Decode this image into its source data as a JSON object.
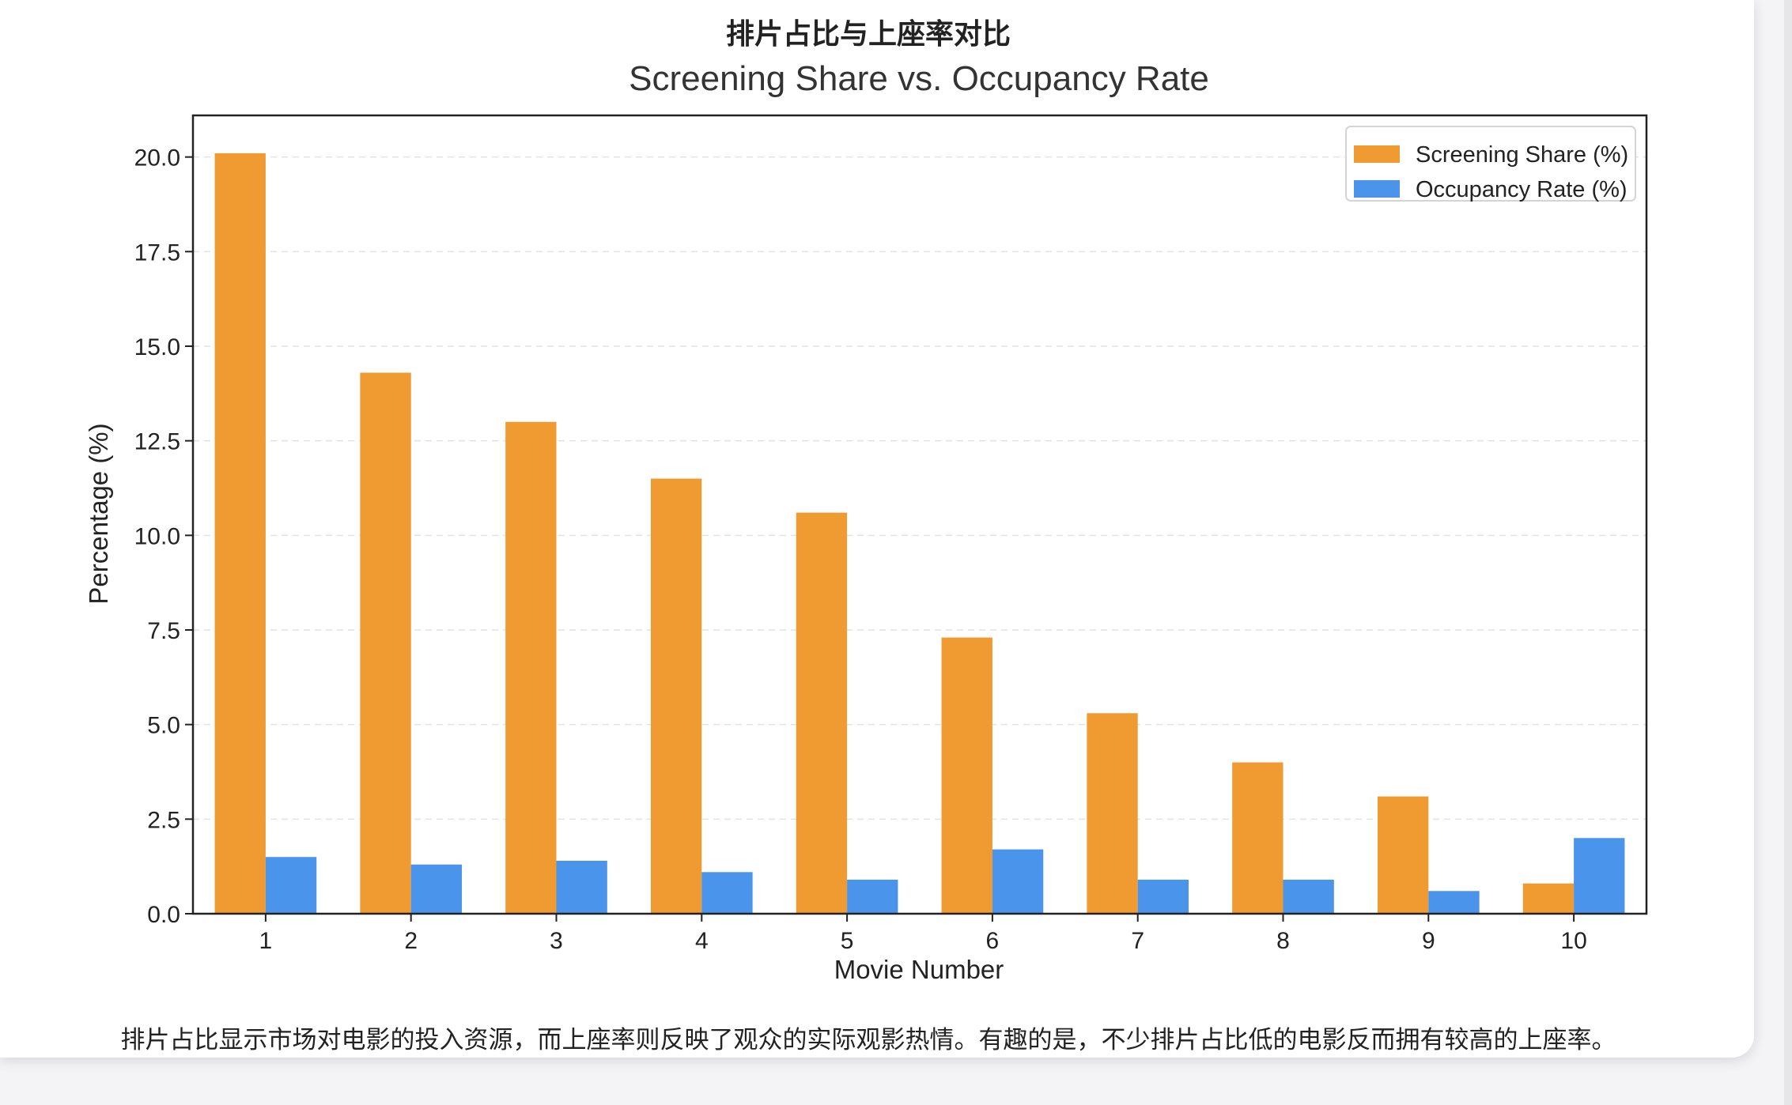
{
  "card": {
    "title": "排片占比与上座率对比",
    "caption": "排片占比显示市场对电影的投入资源，而上座率则反映了观众的实际观影热情。有趣的是，不少排片占比低的电影反而拥有较高的上座率。"
  },
  "chart_data": {
    "type": "bar",
    "title": "Screening Share vs. Occupancy Rate",
    "xlabel": "Movie Number",
    "ylabel": "Percentage (%)",
    "categories": [
      "1",
      "2",
      "3",
      "4",
      "5",
      "6",
      "7",
      "8",
      "9",
      "10"
    ],
    "ylim": [
      0,
      21.1
    ],
    "yticks": [
      "0.0",
      "2.5",
      "5.0",
      "7.5",
      "10.0",
      "12.5",
      "15.0",
      "17.5",
      "20.0"
    ],
    "grid": "horizontal dashed",
    "legend_position": "top-right",
    "series": [
      {
        "name": "Screening Share (%)",
        "color": "#f09a32",
        "values": [
          20.1,
          14.3,
          13.0,
          11.5,
          10.6,
          7.3,
          5.3,
          4.0,
          3.1,
          0.8
        ]
      },
      {
        "name": "Occupancy Rate (%)",
        "color": "#4a94eb",
        "values": [
          1.5,
          1.3,
          1.4,
          1.1,
          0.9,
          1.7,
          0.9,
          0.9,
          0.6,
          2.0
        ]
      }
    ]
  }
}
